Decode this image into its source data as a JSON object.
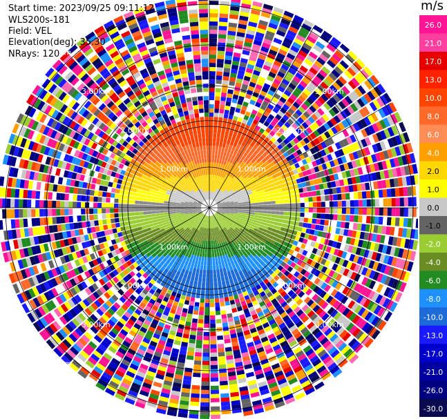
{
  "header": {
    "start_time": "Start time: 2023/09/25 09:11:12",
    "station": "WLS200s-181",
    "field": "Field: VEL",
    "elevation": "Elevation(deg): 35.30",
    "nrays": "NRays: 120"
  },
  "chart_data": {
    "type": "heatmap",
    "subtype": "radar-ppi",
    "field": "VEL",
    "nrays": 120,
    "range_ring_labels": [
      "1.00km",
      "2.00km",
      "3.00km",
      "4.00km",
      "5.00km"
    ],
    "unit": "m/s",
    "colorbar_ticks": [
      "26.0",
      "21.0",
      "17.0",
      "13.0",
      "10.0",
      "8.0",
      "6.0",
      "4.0",
      "2.0",
      "1.0",
      "0.0",
      "-1.0",
      "-2.0",
      "-4.0",
      "-6.0",
      "-8.0",
      "-10.0",
      "-13.0",
      "-17.0",
      "-21.0",
      "-26.0",
      "-30.0"
    ],
    "colorbar_colors": [
      "#ff1493",
      "#ff3fa0",
      "#e60000",
      "#ff2200",
      "#ff4500",
      "#ff6a2a",
      "#ff8c55",
      "#ff9f00",
      "#ffd700",
      "#ffff00",
      "#c8c8c8",
      "#646464",
      "#9acd32",
      "#6b8e23",
      "#228b22",
      "#1e90ff",
      "#1c6bd8",
      "#1a1aff",
      "#0000cd",
      "#0000a0",
      "#000080",
      "#0a0a50"
    ],
    "noise_colors": [
      "#ff1493",
      "#ff1493",
      "#ff69b4",
      "#e60000",
      "#ff4500",
      "#ff6a2a",
      "#ff9f00",
      "#ffff00",
      "#ffff00",
      "#c8c8c8",
      "#646464",
      "#9acd32",
      "#228b22",
      "#1e90ff",
      "#1a1aff",
      "#1a1aff",
      "#0000cd",
      "#000080",
      "#000080",
      "#0a0a50",
      "#ffffff",
      "#ffffff"
    ]
  }
}
